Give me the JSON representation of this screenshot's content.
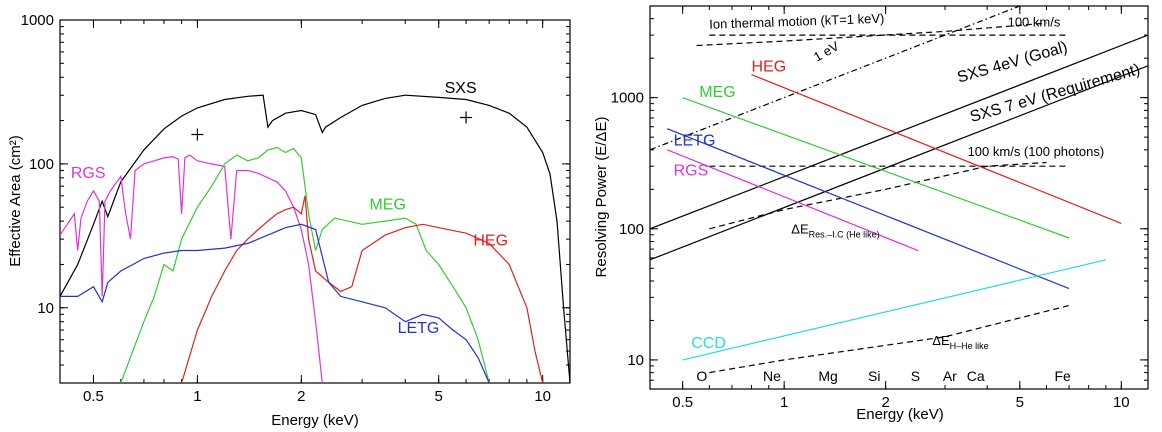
{
  "chart_data": [
    {
      "type": "line",
      "xlabel": "Energy (keV)",
      "ylabel": "Effective Area (cm²)",
      "xscale": "log",
      "yscale": "log",
      "xlim": [
        0.4,
        12
      ],
      "ylim": [
        3,
        1000
      ],
      "x_ticks": [
        {
          "v": 0.5,
          "label": "0.5"
        },
        {
          "v": 1,
          "label": "1"
        },
        {
          "v": 2,
          "label": "2"
        },
        {
          "v": 5,
          "label": "5"
        },
        {
          "v": 10,
          "label": "10"
        }
      ],
      "y_ticks": [
        {
          "v": 10,
          "label": "10"
        },
        {
          "v": 100,
          "label": "100"
        },
        {
          "v": 1000,
          "label": "1000"
        }
      ],
      "grid": false,
      "series": [
        {
          "name": "SXS",
          "color": "#000000",
          "label_at": [
            5.2,
            310
          ],
          "points": [
            [
              0.4,
              12
            ],
            [
              0.45,
              20
            ],
            [
              0.5,
              38
            ],
            [
              0.53,
              55
            ],
            [
              0.55,
              43
            ],
            [
              0.6,
              75
            ],
            [
              0.7,
              125
            ],
            [
              0.8,
              175
            ],
            [
              0.9,
              215
            ],
            [
              1.0,
              245
            ],
            [
              1.2,
              280
            ],
            [
              1.4,
              295
            ],
            [
              1.55,
              300
            ],
            [
              1.6,
              180
            ],
            [
              1.65,
              200
            ],
            [
              1.8,
              225
            ],
            [
              2.0,
              235
            ],
            [
              2.2,
              220
            ],
            [
              2.3,
              165
            ],
            [
              2.35,
              180
            ],
            [
              2.6,
              210
            ],
            [
              3.0,
              255
            ],
            [
              3.5,
              285
            ],
            [
              4.0,
              300
            ],
            [
              5.0,
              290
            ],
            [
              6.0,
              280
            ],
            [
              7.0,
              255
            ],
            [
              8.0,
              225
            ],
            [
              9.0,
              180
            ],
            [
              10.0,
              120
            ],
            [
              10.5,
              85
            ],
            [
              11.0,
              40
            ],
            [
              11.5,
              10
            ],
            [
              12.0,
              3
            ]
          ]
        },
        {
          "name": "RGS",
          "color": "#dd33dd",
          "label_at": [
            0.43,
            80
          ],
          "points": [
            [
              0.4,
              32
            ],
            [
              0.42,
              38
            ],
            [
              0.44,
              45
            ],
            [
              0.45,
              25
            ],
            [
              0.46,
              42
            ],
            [
              0.48,
              55
            ],
            [
              0.5,
              65
            ],
            [
              0.52,
              55
            ],
            [
              0.53,
              12
            ],
            [
              0.54,
              55
            ],
            [
              0.56,
              65
            ],
            [
              0.6,
              82
            ],
            [
              0.62,
              45
            ],
            [
              0.64,
              30
            ],
            [
              0.66,
              90
            ],
            [
              0.7,
              100
            ],
            [
              0.75,
              105
            ],
            [
              0.8,
              110
            ],
            [
              0.85,
              112
            ],
            [
              0.88,
              108
            ],
            [
              0.9,
              45
            ],
            [
              0.92,
              110
            ],
            [
              0.95,
              115
            ],
            [
              1.0,
              105
            ],
            [
              1.1,
              100
            ],
            [
              1.2,
              96
            ],
            [
              1.25,
              30
            ],
            [
              1.3,
              90
            ],
            [
              1.4,
              90
            ],
            [
              1.5,
              86
            ],
            [
              1.6,
              80
            ],
            [
              1.7,
              75
            ],
            [
              1.8,
              65
            ],
            [
              1.9,
              50
            ],
            [
              2.0,
              35
            ],
            [
              2.1,
              20
            ],
            [
              2.2,
              8
            ],
            [
              2.3,
              3
            ]
          ]
        },
        {
          "name": "MEG",
          "color": "#33cc33",
          "label_at": [
            3.15,
            48
          ],
          "points": [
            [
              0.6,
              3
            ],
            [
              0.65,
              5
            ],
            [
              0.7,
              8
            ],
            [
              0.75,
              12
            ],
            [
              0.8,
              20
            ],
            [
              0.85,
              18
            ],
            [
              0.9,
              30
            ],
            [
              1.0,
              50
            ],
            [
              1.1,
              70
            ],
            [
              1.2,
              100
            ],
            [
              1.3,
              115
            ],
            [
              1.4,
              105
            ],
            [
              1.5,
              110
            ],
            [
              1.6,
              125
            ],
            [
              1.7,
              130
            ],
            [
              1.8,
              120
            ],
            [
              1.9,
              128
            ],
            [
              2.0,
              110
            ],
            [
              2.1,
              45
            ],
            [
              2.2,
              25
            ],
            [
              2.3,
              35
            ],
            [
              2.5,
              42
            ],
            [
              3.0,
              38
            ],
            [
              3.5,
              40
            ],
            [
              4.0,
              42
            ],
            [
              4.3,
              38
            ],
            [
              4.6,
              25
            ],
            [
              5.0,
              20
            ],
            [
              5.5,
              14
            ],
            [
              6.0,
              10
            ],
            [
              6.5,
              6
            ],
            [
              7.0,
              3
            ]
          ]
        },
        {
          "name": "HEG",
          "color": "#dd2222",
          "label_at": [
            6.3,
            27
          ],
          "points": [
            [
              0.9,
              3
            ],
            [
              1.0,
              7
            ],
            [
              1.1,
              12
            ],
            [
              1.2,
              18
            ],
            [
              1.3,
              25
            ],
            [
              1.4,
              30
            ],
            [
              1.5,
              35
            ],
            [
              1.6,
              40
            ],
            [
              1.7,
              45
            ],
            [
              1.8,
              48
            ],
            [
              1.9,
              50
            ],
            [
              2.0,
              45
            ],
            [
              2.05,
              60
            ],
            [
              2.1,
              30
            ],
            [
              2.2,
              18
            ],
            [
              2.4,
              15
            ],
            [
              2.6,
              13
            ],
            [
              2.8,
              14
            ],
            [
              3.0,
              25
            ],
            [
              3.5,
              32
            ],
            [
              4.0,
              36
            ],
            [
              4.5,
              38
            ],
            [
              5.0,
              36
            ],
            [
              6.0,
              33
            ],
            [
              7.0,
              28
            ],
            [
              8.0,
              20
            ],
            [
              9.0,
              10
            ],
            [
              9.5,
              5
            ],
            [
              10.0,
              3
            ]
          ]
        },
        {
          "name": "LETG",
          "color": "#2233cc",
          "label_at": [
            3.8,
            6.7
          ],
          "points": [
            [
              0.4,
              12
            ],
            [
              0.45,
              12
            ],
            [
              0.5,
              14
            ],
            [
              0.53,
              11
            ],
            [
              0.55,
              15
            ],
            [
              0.6,
              18
            ],
            [
              0.7,
              22
            ],
            [
              0.8,
              24
            ],
            [
              0.9,
              25
            ],
            [
              1.0,
              25
            ],
            [
              1.2,
              26
            ],
            [
              1.4,
              28
            ],
            [
              1.6,
              32
            ],
            [
              1.8,
              36
            ],
            [
              2.0,
              38
            ],
            [
              2.2,
              35
            ],
            [
              2.4,
              15
            ],
            [
              2.6,
              12
            ],
            [
              3.0,
              11
            ],
            [
              3.5,
              10
            ],
            [
              4.0,
              8
            ],
            [
              4.5,
              9
            ],
            [
              5.0,
              8.5
            ],
            [
              5.5,
              7
            ],
            [
              6.0,
              6
            ],
            [
              6.5,
              4.5
            ],
            [
              7.0,
              3
            ]
          ]
        }
      ],
      "markers": [
        {
          "shape": "plus",
          "x": 1.0,
          "y": 160
        },
        {
          "shape": "plus",
          "x": 6.0,
          "y": 210
        }
      ]
    },
    {
      "type": "line",
      "xlabel": "Energy (keV)",
      "ylabel": "Resolving Power (E/ΔE)",
      "xscale": "log",
      "yscale": "log",
      "xlim": [
        0.4,
        12
      ],
      "ylim": [
        6,
        5000
      ],
      "x_ticks": [
        {
          "v": 0.5,
          "label": "0.5"
        },
        {
          "v": 1,
          "label": "1"
        },
        {
          "v": 2,
          "label": "2"
        },
        {
          "v": 5,
          "label": "5"
        },
        {
          "v": 10,
          "label": "10"
        }
      ],
      "y_ticks": [
        {
          "v": 10,
          "label": "10"
        },
        {
          "v": 100,
          "label": "100"
        },
        {
          "v": 1000,
          "label": "1000"
        }
      ],
      "grid": false,
      "series": [
        {
          "name": "SXS 4eV (Goal)",
          "color": "#000000",
          "width": 1.8,
          "points": [
            [
              0.4,
              100
            ],
            [
              12,
              3000
            ]
          ],
          "label_at": [
            3.3,
            1300
          ],
          "rotate": -16
        },
        {
          "name": "SXS 7 eV (Requirement)",
          "color": "#000000",
          "width": 1.8,
          "points": [
            [
              0.4,
              58
            ],
            [
              12,
              1750
            ]
          ],
          "label_at": [
            3.6,
            650
          ],
          "rotate": -16
        },
        {
          "name": "HEG",
          "color": "#dd2222",
          "points": [
            [
              0.8,
              1500
            ],
            [
              10,
              110
            ]
          ],
          "label_at": [
            0.8,
            1580
          ],
          "rotate": 0
        },
        {
          "name": "MEG",
          "color": "#33cc33",
          "points": [
            [
              0.5,
              1000
            ],
            [
              7,
              85
            ]
          ],
          "label_at": [
            0.56,
            1010
          ],
          "rotate": 0
        },
        {
          "name": "LETG",
          "color": "#2233cc",
          "points": [
            [
              0.45,
              580
            ],
            [
              7,
              35
            ]
          ],
          "label_at": [
            0.47,
            430
          ],
          "rotate": 0
        },
        {
          "name": "RGS",
          "color": "#dd33dd",
          "points": [
            [
              0.45,
              400
            ],
            [
              2.5,
              68
            ]
          ],
          "label_at": [
            0.47,
            255
          ],
          "rotate": 0
        },
        {
          "name": "CCD",
          "color": "#22dddd",
          "points": [
            [
              0.5,
              10
            ],
            [
              9,
              58
            ]
          ],
          "label_at": [
            0.53,
            12.3
          ],
          "rotate": 0
        }
      ],
      "annotations": [
        {
          "text": "Ion thermal motion (kT=1 keV)",
          "style": "dashed",
          "points": [
            [
              0.55,
              2500
            ],
            [
              1.0,
              2700
            ],
            [
              3.0,
              3200
            ],
            [
              6.0,
              3700
            ]
          ],
          "label_at": [
            0.6,
            3350
          ],
          "rotate": -2
        },
        {
          "text": "100 km/s",
          "style": "dashed",
          "points": [
            [
              0.6,
              3000
            ],
            [
              1.0,
              3000
            ],
            [
              3.0,
              3000
            ],
            [
              7.0,
              3000
            ]
          ],
          "label_at": [
            4.6,
            3500
          ],
          "rotate": 0
        },
        {
          "text": "1 eV",
          "style": "dashdot",
          "points": [
            [
              0.4,
              400
            ],
            [
              8,
              8000
            ]
          ],
          "label_at": [
            1.25,
            1870
          ],
          "rotate": -30
        },
        {
          "text": "100 km/s (100 photons)",
          "style": "dashed",
          "points": [
            [
              0.6,
              300
            ],
            [
              1.0,
              300
            ],
            [
              3.0,
              300
            ],
            [
              7.0,
              300
            ]
          ],
          "label_at": [
            3.5,
            360
          ],
          "rotate": 0
        },
        {
          "text": "ΔE",
          "sub": "Res.–I.C (He like)",
          "style": "dashed",
          "points": [
            [
              0.6,
              100
            ],
            [
              1.0,
              140
            ],
            [
              2.0,
              200
            ],
            [
              4.0,
              300
            ],
            [
              6.0,
              320
            ]
          ],
          "label_at": [
            1.05,
            92
          ],
          "rotate": 0
        },
        {
          "text": "ΔE",
          "sub": "H–He like",
          "style": "dashed",
          "points": [
            [
              0.6,
              8
            ],
            [
              1.0,
              10
            ],
            [
              3.0,
              15
            ],
            [
              7.0,
              26
            ]
          ],
          "label_at": [
            2.75,
            13
          ],
          "rotate": 0
        }
      ],
      "element_markers": [
        {
          "label": "O",
          "x": 0.57
        },
        {
          "label": "Ne",
          "x": 0.92
        },
        {
          "label": "Mg",
          "x": 1.35
        },
        {
          "label": "Si",
          "x": 1.85
        },
        {
          "label": "S",
          "x": 2.45
        },
        {
          "label": "Ar",
          "x": 3.1
        },
        {
          "label": "Ca",
          "x": 3.7
        },
        {
          "label": "Fe",
          "x": 6.7
        }
      ]
    }
  ]
}
